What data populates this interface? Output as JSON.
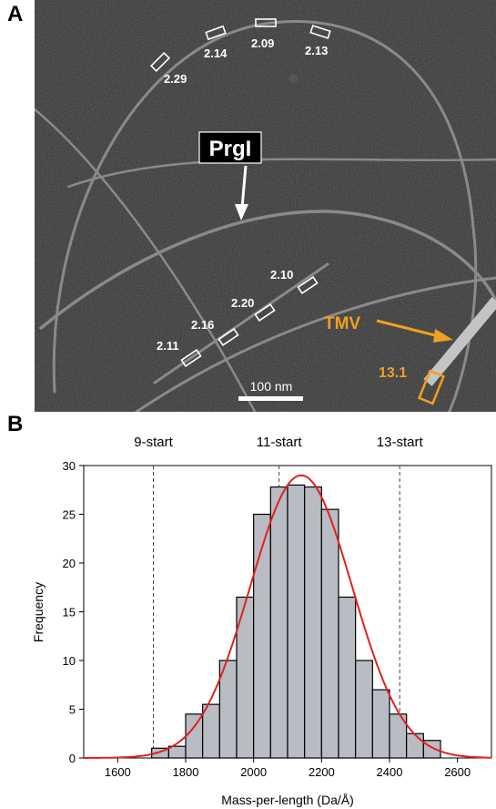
{
  "panel_a": {
    "letter": "A",
    "protein_label": "PrgI",
    "reference_label": "TMV",
    "reference_value": "13.1",
    "scale_bar": "100 nm",
    "measurements_top": [
      "2.29",
      "2.14",
      "2.09",
      "2.13"
    ],
    "measurements_diag": [
      "2.10",
      "2.20",
      "2.16",
      "2.11"
    ],
    "colors": {
      "background": "#2d2d2d",
      "highlight": "#f0a020"
    }
  },
  "panel_b": {
    "letter": "B",
    "start_labels": [
      "9-start",
      "11-start",
      "13-start"
    ]
  },
  "chart_data": {
    "type": "bar",
    "xlabel": "Mass-per-length (Da/Å)",
    "ylabel": "Frequency",
    "xlim": [
      1500,
      2700
    ],
    "ylim": [
      0,
      30
    ],
    "xticks": [
      1600,
      1800,
      2000,
      2200,
      2400,
      2600
    ],
    "yticks": [
      0,
      5,
      10,
      15,
      20,
      25,
      30
    ],
    "bin_width": 50,
    "bin_starts": [
      1700,
      1750,
      1800,
      1850,
      1900,
      1950,
      2000,
      2050,
      2100,
      2150,
      2200,
      2250,
      2300,
      2350,
      2400,
      2450,
      2500
    ],
    "values": [
      1,
      1.2,
      4.5,
      5.5,
      10,
      16.5,
      25,
      27.8,
      28,
      27.8,
      25.5,
      16.5,
      10,
      7,
      4.5,
      2.5,
      1.8
    ],
    "fit": {
      "type": "gaussian",
      "mean": 2140,
      "sd": 150,
      "peak": 29,
      "color": "#e02020"
    },
    "reference_lines": [
      {
        "label": "9-start",
        "x": 1705
      },
      {
        "label": "11-start",
        "x": 2075
      },
      {
        "label": "13-start",
        "x": 2430
      }
    ],
    "bar_color": "#b9bcc2",
    "grid": false
  }
}
